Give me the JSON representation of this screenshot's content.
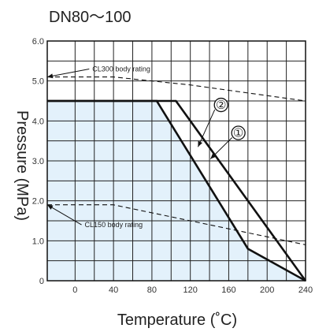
{
  "chart_data": {
    "type": "line",
    "title": "DN80～100",
    "xlabel": "Temperature (˚C)",
    "ylabel": "Pressure (MPa)",
    "xlim": [
      -29,
      240
    ],
    "ylim": [
      0,
      6.0
    ],
    "x_ticks": [
      0,
      40,
      80,
      120,
      160,
      200,
      240
    ],
    "y_ticks": [
      "0",
      "1.0",
      "2.0",
      "3.0",
      "4.0",
      "5.0",
      "6.0"
    ],
    "grid": true,
    "series": [
      {
        "marker": "①",
        "style": "solid-thick",
        "points": [
          [
            -29,
            4.5
          ],
          [
            85,
            4.5
          ],
          [
            180,
            0.8
          ],
          [
            240,
            0
          ]
        ]
      },
      {
        "marker": "②",
        "style": "solid-thick",
        "points": [
          [
            -29,
            4.5
          ],
          [
            105,
            4.5
          ],
          [
            240,
            0
          ]
        ]
      },
      {
        "name": "CL300 body rating",
        "style": "dashed",
        "points": [
          [
            -29,
            5.1
          ],
          [
            40,
            5.1
          ],
          [
            120,
            4.9
          ],
          [
            240,
            4.5
          ]
        ]
      },
      {
        "name": "CL150 body rating",
        "style": "dashed",
        "points": [
          [
            -29,
            1.9
          ],
          [
            40,
            1.9
          ],
          [
            80,
            1.7
          ],
          [
            180,
            1.2
          ],
          [
            240,
            0.9
          ]
        ]
      }
    ],
    "annotations": [
      {
        "text": "CL300 body rating",
        "target": [
          -29,
          5.1
        ],
        "label_at": [
          18,
          5.3
        ]
      },
      {
        "text": "CL150 body rating",
        "target": [
          -29,
          1.9
        ],
        "label_at": [
          10,
          1.4
        ]
      },
      {
        "text": "②",
        "target": [
          128,
          3.35
        ],
        "label_at": [
          152,
          4.4
        ]
      },
      {
        "text": "①",
        "target": [
          141,
          3.05
        ],
        "label_at": [
          170,
          3.7
        ]
      }
    ],
    "colors": {
      "area_fill": "#e3f1fb",
      "line": "#111111",
      "grid": "#222222"
    }
  }
}
